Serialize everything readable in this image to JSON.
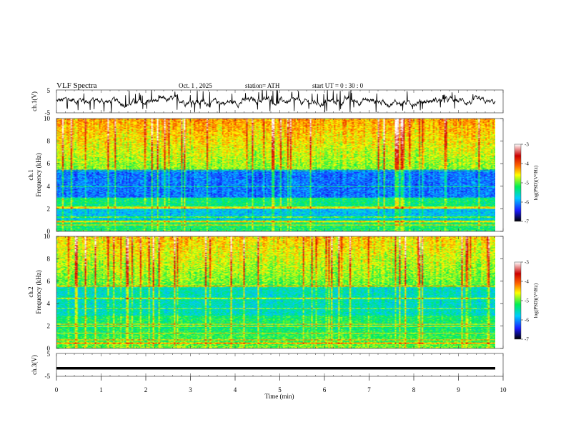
{
  "header": {
    "title": "VLF  Spectra",
    "date": "Oct. 1  , 2025",
    "station": "station= ATH",
    "start": "start  UT  =   0  : 30 : 0"
  },
  "chart_data": [
    {
      "id": "ch1-waveform",
      "type": "line",
      "ylabel": "ch.1(V)",
      "ylim": [
        -5,
        5
      ],
      "yticks": [
        "5",
        "-5"
      ],
      "xlim": [
        0,
        10
      ],
      "series_note": "noisy waveform around 0 V with impulsive spikes"
    },
    {
      "id": "ch1-spectrogram",
      "type": "heatmap",
      "ylabel_line1": "ch.1",
      "ylabel_line2": "Frequency  (kHz)",
      "ylim": [
        0,
        10
      ],
      "yticks": [
        "0",
        "2",
        "4",
        "6",
        "8",
        "10"
      ],
      "xlim": [
        0,
        10
      ],
      "colorbar_label": "log(PSD)(V²/Hz)",
      "colorbar_ticks": [
        "-3",
        "-4",
        "-5",
        "-6",
        "-7"
      ]
    },
    {
      "id": "ch2-spectrogram",
      "type": "heatmap",
      "ylabel_line1": "ch.2",
      "ylabel_line2": "Frequency  (kHz)",
      "ylim": [
        0,
        10
      ],
      "yticks": [
        "0",
        "2",
        "4",
        "6",
        "8",
        "10"
      ],
      "xlim": [
        0,
        10
      ],
      "colorbar_label": "log(PSD)(V²/Hz)",
      "colorbar_ticks": [
        "-3",
        "-4",
        "-5",
        "-6",
        "-7"
      ]
    },
    {
      "id": "ch3-waveform",
      "type": "line",
      "ylabel": "ch.3(V)",
      "ylim": [
        -5,
        5
      ],
      "yticks": [
        "5",
        "-5"
      ],
      "xlim": [
        0,
        10
      ],
      "xlabel": "Time  (min)",
      "xticks": [
        "0",
        "1",
        "2",
        "3",
        "4",
        "5",
        "6",
        "7",
        "8",
        "9",
        "10"
      ],
      "series_note": "flat trace near -1.5 V"
    }
  ],
  "colors": {
    "waveform": "#000000",
    "frame": "#555555",
    "colormap": [
      "#000000",
      "#1a1aff",
      "#00ccff",
      "#00ee55",
      "#ffff00",
      "#ff6600",
      "#cc0000",
      "#ffffff"
    ]
  }
}
